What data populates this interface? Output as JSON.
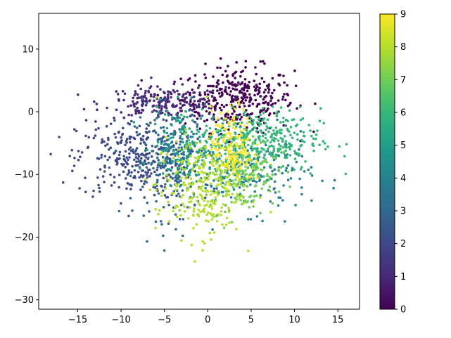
{
  "chart_data": {
    "type": "scatter",
    "title": "",
    "xlabel": "",
    "ylabel": "",
    "xlim": [
      -19.5,
      17.5
    ],
    "ylim": [
      -31.5,
      15.7
    ],
    "xticks": [
      -15,
      -10,
      -5,
      0,
      5,
      10,
      15
    ],
    "yticks": [
      10,
      0,
      -10,
      -20,
      -30
    ],
    "xtick_labels": [
      "−15",
      "−10",
      "−5",
      "0",
      "5",
      "10",
      "15"
    ],
    "ytick_labels": [
      "10",
      "0",
      "−10",
      "−20",
      "−30"
    ],
    "grid": false,
    "colormap": "viridis",
    "color_stops": [
      "#440154",
      "#482878",
      "#3e4989",
      "#31688e",
      "#26828e",
      "#1f9e89",
      "#35b779",
      "#6ece58",
      "#b5de2b",
      "#fde725"
    ],
    "colorbar": {
      "vmin": 0,
      "vmax": 9,
      "ticks": [
        0,
        1,
        2,
        3,
        4,
        5,
        6,
        7,
        8,
        9
      ],
      "tick_labels": [
        "0",
        "1",
        "2",
        "3",
        "4",
        "5",
        "6",
        "7",
        "8",
        "9"
      ]
    },
    "clusters": [
      {
        "label": 0,
        "center": [
          3.5,
          2.0
        ],
        "spread": [
          3.2,
          2.6
        ],
        "count": 360
      },
      {
        "label": 1,
        "center": [
          -5.0,
          1.5
        ],
        "spread": [
          3.5,
          1.2
        ],
        "count": 220
      },
      {
        "label": 2,
        "center": [
          -8.5,
          -7.5
        ],
        "spread": [
          3.3,
          3.2
        ],
        "count": 300
      },
      {
        "label": 3,
        "center": [
          -4.0,
          -8.0
        ],
        "spread": [
          2.2,
          4.5
        ],
        "count": 230
      },
      {
        "label": 4,
        "center": [
          5.0,
          -10.0
        ],
        "spread": [
          3.5,
          3.0
        ],
        "count": 200
      },
      {
        "label": 5,
        "center": [
          -2.5,
          -5.5
        ],
        "spread": [
          2.0,
          3.0
        ],
        "count": 160
      },
      {
        "label": 6,
        "center": [
          6.0,
          -4.5
        ],
        "spread": [
          3.5,
          2.5
        ],
        "count": 340
      },
      {
        "label": 7,
        "center": [
          4.0,
          -9.5
        ],
        "spread": [
          2.0,
          3.0
        ],
        "count": 200
      },
      {
        "label": 8,
        "center": [
          -1.0,
          -12.0
        ],
        "spread": [
          2.5,
          4.0
        ],
        "count": 280
      },
      {
        "label": 9,
        "center": [
          2.8,
          -5.5
        ],
        "spread": [
          1.2,
          3.0
        ],
        "count": 150
      }
    ]
  }
}
